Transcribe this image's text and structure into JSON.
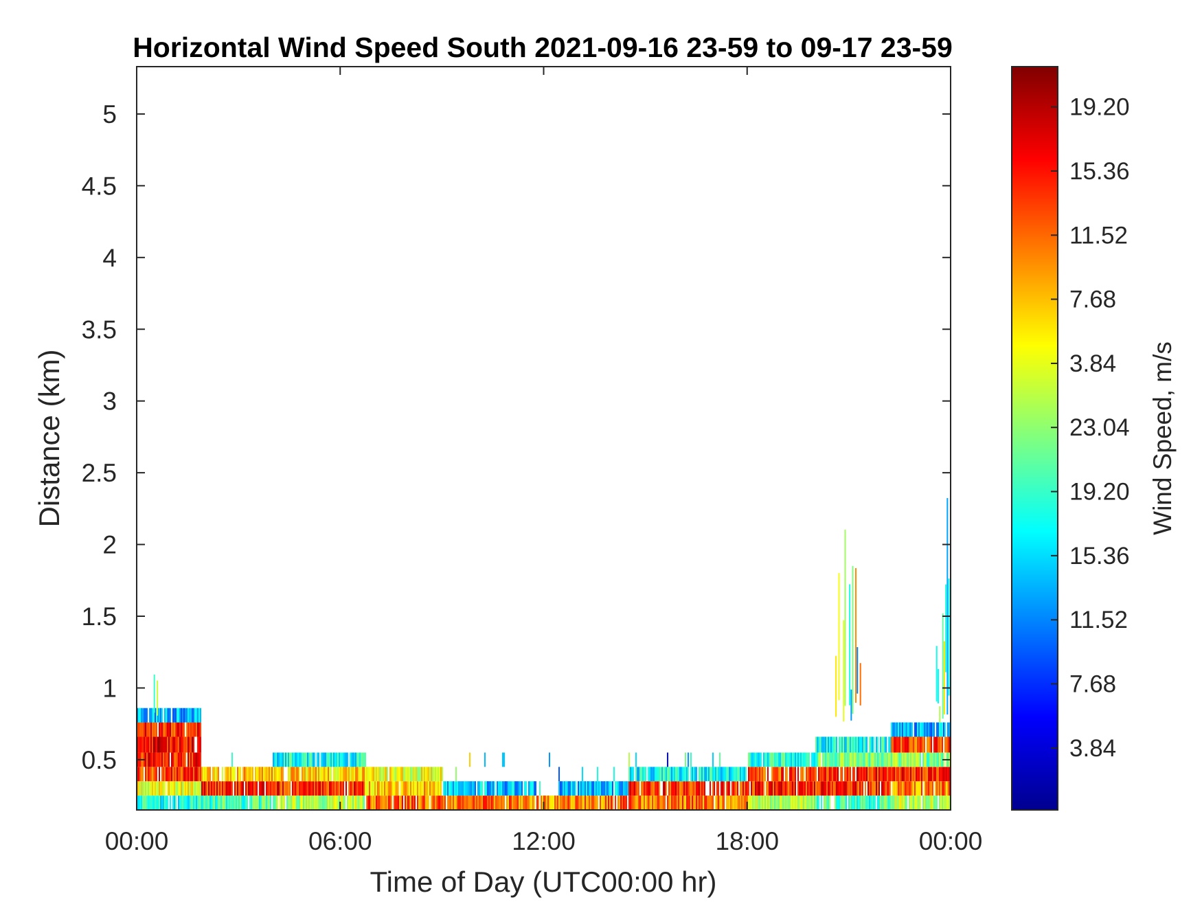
{
  "chart_data": {
    "type": "heatmap",
    "title": "Horizontal Wind Speed South 2021-09-16 23-59 to 09-17 23-59",
    "xlabel": "Time of Day (UTC00:00 hr)",
    "ylabel": "Distance (km)",
    "xlim_hours": [
      0,
      24
    ],
    "ylim_km": [
      0.15,
      5.33
    ],
    "x_ticks": [
      {
        "hour": 0,
        "label": "00:00"
      },
      {
        "hour": 6,
        "label": "06:00"
      },
      {
        "hour": 12,
        "label": "12:00"
      },
      {
        "hour": 18,
        "label": "18:00"
      },
      {
        "hour": 24,
        "label": "00:00"
      }
    ],
    "y_ticks": [
      {
        "value": 0.5,
        "label": "0.5"
      },
      {
        "value": 1,
        "label": "1"
      },
      {
        "value": 1.5,
        "label": "1.5"
      },
      {
        "value": 2,
        "label": "2"
      },
      {
        "value": 2.5,
        "label": "2.5"
      },
      {
        "value": 3,
        "label": "3"
      },
      {
        "value": 3.5,
        "label": "3.5"
      },
      {
        "value": 4,
        "label": "4"
      },
      {
        "value": 4.5,
        "label": "4.5"
      },
      {
        "value": 5,
        "label": "5"
      }
    ],
    "colorbar": {
      "label": "Wind Speed, m/s",
      "colormap": "jet",
      "ticks": [
        {
          "frac": 0.0833,
          "label": "3.84"
        },
        {
          "frac": 0.1696,
          "label": "7.68"
        },
        {
          "frac": 0.2558,
          "label": "11.52"
        },
        {
          "frac": 0.3421,
          "label": "15.36"
        },
        {
          "frac": 0.4283,
          "label": "19.20"
        },
        {
          "frac": 0.5146,
          "label": "23.04"
        },
        {
          "frac": 0.6008,
          "label": "3.84"
        },
        {
          "frac": 0.6871,
          "label": "7.68"
        },
        {
          "frac": 0.7733,
          "label": "11.52"
        },
        {
          "frac": 0.8596,
          "label": "15.36"
        },
        {
          "frac": 0.9458,
          "label": "19.20"
        }
      ]
    },
    "grid": false,
    "gate_edges_km": [
      0.15,
      0.25,
      0.35,
      0.45,
      0.55,
      0.66,
      0.76,
      0.86
    ],
    "band_regimes": [
      {
        "start_hour": 0.0,
        "end_hour": 1.9,
        "levels": [
          0.4,
          0.6,
          0.82,
          0.86,
          0.88,
          0.84,
          0.3
        ]
      },
      {
        "start_hour": 1.9,
        "end_hour": 4.0,
        "levels": [
          0.45,
          0.85,
          0.68,
          null,
          null,
          null,
          null
        ]
      },
      {
        "start_hour": 4.0,
        "end_hour": 6.7,
        "levels": [
          0.55,
          0.84,
          0.66,
          0.4,
          null,
          null,
          null
        ]
      },
      {
        "start_hour": 6.7,
        "end_hour": 9.0,
        "levels": [
          0.78,
          0.68,
          0.6,
          null,
          null,
          null,
          null
        ]
      },
      {
        "start_hour": 9.0,
        "end_hour": 11.8,
        "levels": [
          0.76,
          0.32,
          null,
          null,
          null,
          null,
          null
        ]
      },
      {
        "start_hour": 11.8,
        "end_hour": 12.4,
        "levels": [
          0.72,
          null,
          null,
          null,
          null,
          null,
          null
        ]
      },
      {
        "start_hour": 12.4,
        "end_hour": 14.5,
        "levels": [
          0.76,
          0.3,
          null,
          null,
          null,
          null,
          null
        ]
      },
      {
        "start_hour": 14.5,
        "end_hour": 18.0,
        "levels": [
          0.76,
          0.83,
          0.38,
          null,
          null,
          null,
          null
        ]
      },
      {
        "start_hour": 18.0,
        "end_hour": 20.0,
        "levels": [
          0.55,
          0.84,
          0.8,
          0.42,
          null,
          null,
          null
        ]
      },
      {
        "start_hour": 20.0,
        "end_hour": 22.2,
        "levels": [
          0.45,
          0.84,
          0.85,
          0.5,
          0.4,
          null,
          null
        ]
      },
      {
        "start_hour": 22.2,
        "end_hour": 24.0,
        "levels": [
          0.55,
          0.75,
          0.84,
          0.5,
          0.8,
          0.3,
          null
        ]
      }
    ],
    "spikes": [
      {
        "start_hour": 20.6,
        "end_hour": 21.4,
        "top_km": 2.12
      },
      {
        "start_hour": 23.3,
        "end_hour": 23.95,
        "top_km": 2.63
      },
      {
        "start_hour": 0.5,
        "end_hour": 0.6,
        "top_km": 1.28
      }
    ]
  }
}
